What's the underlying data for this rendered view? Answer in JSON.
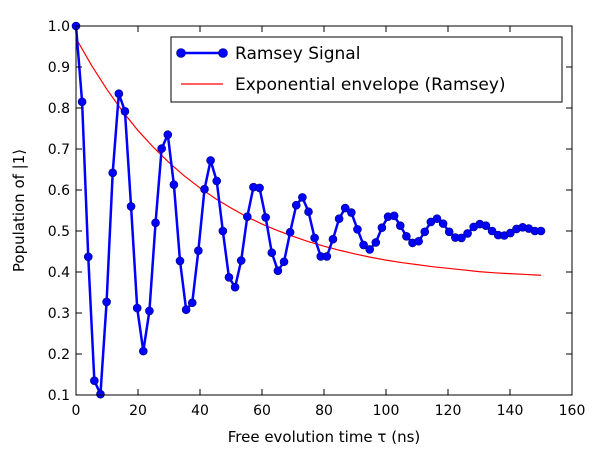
{
  "chart_data": {
    "type": "line",
    "xlabel": "Free evolution time τ (ns)",
    "ylabel": "Population of |1⟩",
    "xlim": [
      0,
      160
    ],
    "ylim": [
      0.1,
      1.0
    ],
    "xticks": [
      0,
      20,
      40,
      60,
      80,
      100,
      120,
      140,
      160
    ],
    "yticks": [
      0.1,
      0.2,
      0.3,
      0.4,
      0.5,
      0.6,
      0.7,
      0.8,
      0.9,
      1.0
    ],
    "grid": false,
    "legend_position": "top-right",
    "series": [
      {
        "name": "Ramsey Signal",
        "color": "#0000ff",
        "marker": "circle",
        "x": [
          0,
          1.97,
          3.95,
          5.92,
          7.89,
          9.87,
          11.84,
          13.82,
          15.79,
          17.76,
          19.74,
          21.71,
          23.68,
          25.66,
          27.63,
          29.61,
          31.58,
          33.55,
          35.53,
          37.5,
          39.47,
          41.45,
          43.42,
          45.39,
          47.37,
          49.34,
          51.32,
          53.29,
          55.26,
          57.24,
          59.21,
          61.18,
          63.16,
          65.13,
          67.11,
          69.08,
          71.05,
          73.03,
          75,
          76.97,
          78.95,
          80.92,
          82.89,
          84.87,
          86.84,
          88.82,
          90.79,
          92.76,
          94.74,
          96.71,
          98.68,
          100.66,
          102.63,
          104.61,
          106.58,
          108.55,
          110.53,
          112.5,
          114.47,
          116.45,
          118.42,
          120.39,
          122.37,
          124.34,
          126.32,
          128.29,
          130.26,
          132.24,
          134.21,
          136.18,
          138.16,
          140.13,
          142.11,
          144.08,
          146.05,
          148.03,
          150
        ],
        "y": [
          1.0,
          0.815,
          0.437,
          0.135,
          0.102,
          0.327,
          0.642,
          0.835,
          0.792,
          0.56,
          0.312,
          0.207,
          0.305,
          0.52,
          0.701,
          0.735,
          0.613,
          0.427,
          0.308,
          0.325,
          0.452,
          0.602,
          0.672,
          0.622,
          0.5,
          0.387,
          0.363,
          0.428,
          0.535,
          0.607,
          0.605,
          0.533,
          0.447,
          0.403,
          0.425,
          0.497,
          0.563,
          0.582,
          0.547,
          0.483,
          0.438,
          0.438,
          0.48,
          0.53,
          0.556,
          0.545,
          0.504,
          0.466,
          0.455,
          0.472,
          0.508,
          0.535,
          0.537,
          0.513,
          0.487,
          0.471,
          0.475,
          0.498,
          0.522,
          0.53,
          0.518,
          0.498,
          0.484,
          0.483,
          0.494,
          0.51,
          0.517,
          0.513,
          0.5,
          0.49,
          0.489,
          0.495,
          0.505,
          0.509,
          0.506,
          0.5,
          0.5
        ]
      },
      {
        "name": "Exponential envelope (Ramsey)",
        "color": "#ff0000",
        "marker": "none",
        "x": [
          0,
          5,
          10,
          15,
          20,
          25,
          30,
          35,
          40,
          45,
          50,
          55,
          60,
          65,
          70,
          75,
          80,
          85,
          90,
          95,
          100,
          105,
          110,
          115,
          120,
          125,
          130,
          135,
          140,
          145,
          150
        ],
        "y": [
          0.97,
          0.904,
          0.845,
          0.792,
          0.745,
          0.704,
          0.667,
          0.634,
          0.605,
          0.579,
          0.556,
          0.535,
          0.517,
          0.501,
          0.487,
          0.474,
          0.463,
          0.453,
          0.444,
          0.436,
          0.429,
          0.423,
          0.418,
          0.413,
          0.409,
          0.405,
          0.401,
          0.398,
          0.396,
          0.394,
          0.392
        ]
      }
    ]
  }
}
